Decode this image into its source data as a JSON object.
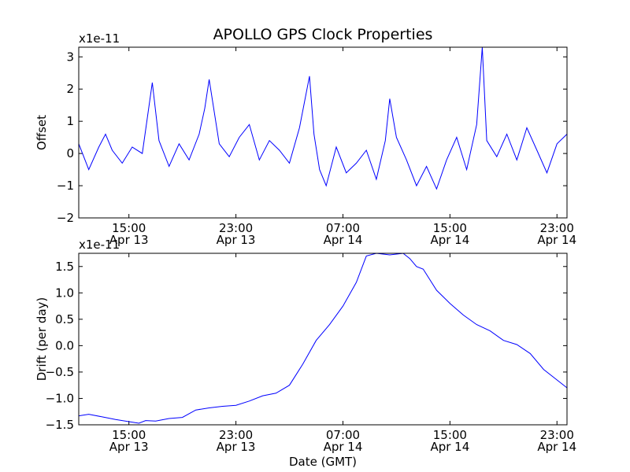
{
  "chart_data": [
    {
      "type": "line",
      "title": "APOLLO GPS Clock Properties",
      "xlabel": "",
      "ylabel": "Offset",
      "exponent_label": "x1e-11",
      "x_range": [
        "2012-04-13 11:15",
        "2012-04-14 23:45"
      ],
      "ylim": [
        -2,
        3.3
      ],
      "y_ticks": [
        -2,
        -1,
        0,
        1,
        2,
        3
      ],
      "y_tick_labels": [
        "−2",
        "−1",
        "0",
        "1",
        "2",
        "3"
      ],
      "x_ticks": [
        {
          "time": "2012-04-13 15:00",
          "hour": "15:00",
          "date": "Apr 13"
        },
        {
          "time": "2012-04-13 23:00",
          "hour": "23:00",
          "date": "Apr 13"
        },
        {
          "time": "2012-04-14 07:00",
          "hour": "07:00",
          "date": "Apr 14"
        },
        {
          "time": "2012-04-14 15:00",
          "hour": "15:00",
          "date": "Apr 14"
        },
        {
          "time": "2012-04-14 23:00",
          "hour": "23:00",
          "date": "Apr 14"
        }
      ],
      "grid": false,
      "line_color": "#0000ff",
      "series": [
        {
          "x": [
            "2012-04-13 11:15",
            "2012-04-13 12:00",
            "2012-04-13 12:45",
            "2012-04-13 13:15",
            "2012-04-13 13:45",
            "2012-04-13 14:30",
            "2012-04-13 15:15",
            "2012-04-13 16:00",
            "2012-04-13 16:45",
            "2012-04-13 17:15",
            "2012-04-13 18:00",
            "2012-04-13 18:45",
            "2012-04-13 19:30",
            "2012-04-13 20:15",
            "2012-04-13 20:40",
            "2012-04-13 21:00",
            "2012-04-13 21:45",
            "2012-04-13 22:30",
            "2012-04-13 23:15",
            "2012-04-14 00:00",
            "2012-04-14 00:45",
            "2012-04-14 01:30",
            "2012-04-14 02:15",
            "2012-04-14 03:00",
            "2012-04-14 03:45",
            "2012-04-14 04:30",
            "2012-04-14 04:50",
            "2012-04-14 05:15",
            "2012-04-14 05:45",
            "2012-04-14 06:30",
            "2012-04-14 07:15",
            "2012-04-14 08:00",
            "2012-04-14 08:45",
            "2012-04-14 09:30",
            "2012-04-14 10:10",
            "2012-04-14 10:30",
            "2012-04-14 11:00",
            "2012-04-14 11:45",
            "2012-04-14 12:30",
            "2012-04-14 13:15",
            "2012-04-14 14:00",
            "2012-04-14 14:45",
            "2012-04-14 15:30",
            "2012-04-14 16:15",
            "2012-04-14 17:00",
            "2012-04-14 17:25",
            "2012-04-14 17:45",
            "2012-04-14 18:30",
            "2012-04-14 19:15",
            "2012-04-14 20:00",
            "2012-04-14 20:45",
            "2012-04-14 21:30",
            "2012-04-14 22:15",
            "2012-04-14 23:00",
            "2012-04-14 23:45"
          ],
          "values": [
            0.3,
            -0.5,
            0.2,
            0.6,
            0.1,
            -0.3,
            0.2,
            0.0,
            2.2,
            0.4,
            -0.4,
            0.3,
            -0.2,
            0.6,
            1.4,
            2.3,
            0.3,
            -0.1,
            0.5,
            0.9,
            -0.2,
            0.4,
            0.1,
            -0.3,
            0.8,
            2.4,
            0.6,
            -0.5,
            -1.0,
            0.2,
            -0.6,
            -0.3,
            0.1,
            -0.8,
            0.4,
            1.7,
            0.5,
            -0.2,
            -1.0,
            -0.4,
            -1.1,
            -0.2,
            0.5,
            -0.5,
            0.9,
            3.3,
            0.4,
            -0.1,
            0.6,
            -0.2,
            0.8,
            0.1,
            -0.6,
            0.3,
            0.6
          ]
        }
      ]
    },
    {
      "type": "line",
      "title": "",
      "xlabel": "Date (GMT)",
      "ylabel": "Drift (per day)",
      "exponent_label": "x1e-11",
      "x_range": [
        "2012-04-13 11:15",
        "2012-04-14 23:45"
      ],
      "ylim": [
        -1.5,
        1.75
      ],
      "y_ticks": [
        -1.5,
        -1.0,
        -0.5,
        0.0,
        0.5,
        1.0,
        1.5
      ],
      "y_tick_labels": [
        "−1.5",
        "−1.0",
        "−0.5",
        "0.0",
        "0.5",
        "1.0",
        "1.5"
      ],
      "x_ticks": [
        {
          "time": "2012-04-13 15:00",
          "hour": "15:00",
          "date": "Apr 13"
        },
        {
          "time": "2012-04-13 23:00",
          "hour": "23:00",
          "date": "Apr 13"
        },
        {
          "time": "2012-04-14 07:00",
          "hour": "07:00",
          "date": "Apr 14"
        },
        {
          "time": "2012-04-14 15:00",
          "hour": "15:00",
          "date": "Apr 14"
        },
        {
          "time": "2012-04-14 23:00",
          "hour": "23:00",
          "date": "Apr 14"
        }
      ],
      "grid": false,
      "line_color": "#0000ff",
      "series": [
        {
          "x": [
            "2012-04-13 11:15",
            "2012-04-13 12:00",
            "2012-04-13 13:00",
            "2012-04-13 14:00",
            "2012-04-13 15:00",
            "2012-04-13 15:45",
            "2012-04-13 16:15",
            "2012-04-13 17:00",
            "2012-04-13 18:00",
            "2012-04-13 19:00",
            "2012-04-13 20:00",
            "2012-04-13 21:00",
            "2012-04-13 22:00",
            "2012-04-13 23:00",
            "2012-04-14 00:00",
            "2012-04-14 01:00",
            "2012-04-14 02:00",
            "2012-04-14 03:00",
            "2012-04-14 03:30",
            "2012-04-14 04:00",
            "2012-04-14 05:00",
            "2012-04-14 06:00",
            "2012-04-14 07:00",
            "2012-04-14 08:00",
            "2012-04-14 08:45",
            "2012-04-14 09:30",
            "2012-04-14 10:30",
            "2012-04-14 11:30",
            "2012-04-14 12:00",
            "2012-04-14 12:30",
            "2012-04-14 13:00",
            "2012-04-14 14:00",
            "2012-04-14 15:00",
            "2012-04-14 16:00",
            "2012-04-14 17:00",
            "2012-04-14 18:00",
            "2012-04-14 19:00",
            "2012-04-14 20:00",
            "2012-04-14 21:00",
            "2012-04-14 22:00",
            "2012-04-14 23:00",
            "2012-04-14 23:45"
          ],
          "values": [
            -1.33,
            -1.3,
            -1.35,
            -1.4,
            -1.44,
            -1.47,
            -1.42,
            -1.43,
            -1.38,
            -1.36,
            -1.22,
            -1.18,
            -1.15,
            -1.13,
            -1.05,
            -0.95,
            -0.9,
            -0.75,
            -0.55,
            -0.35,
            0.1,
            0.4,
            0.75,
            1.2,
            1.7,
            1.75,
            1.72,
            1.75,
            1.65,
            1.5,
            1.45,
            1.05,
            0.8,
            0.58,
            0.4,
            0.28,
            0.1,
            0.02,
            -0.15,
            -0.45,
            -0.65,
            -0.8
          ]
        }
      ]
    }
  ]
}
